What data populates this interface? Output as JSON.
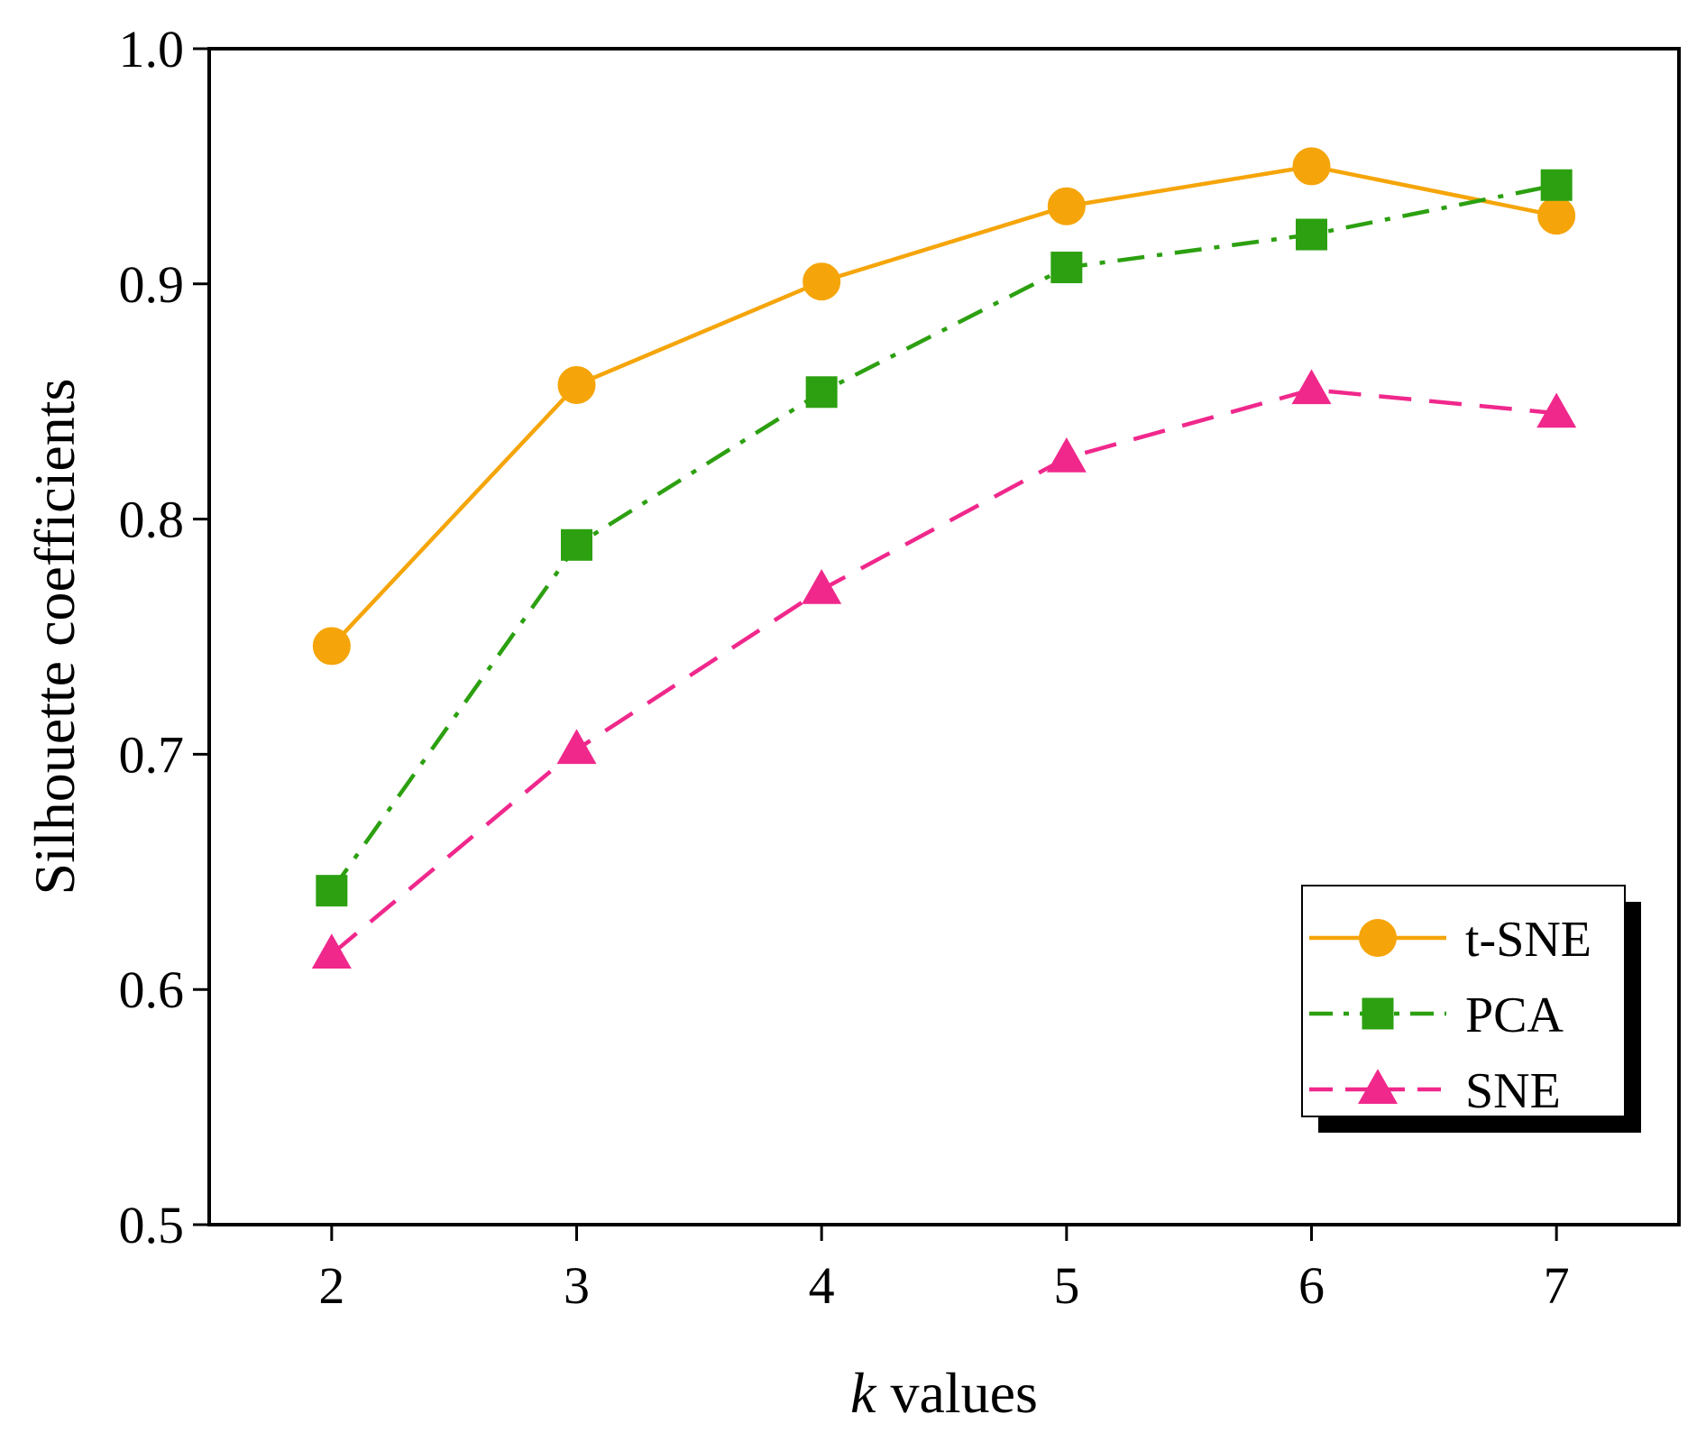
{
  "chart_data": {
    "type": "line",
    "title": "",
    "xlabel_italic": "k",
    "xlabel_rest": " values",
    "ylabel": "Silhouette coefficients",
    "x": [
      2,
      3,
      4,
      5,
      6,
      7
    ],
    "x_tick_labels": [
      "2",
      "3",
      "4",
      "5",
      "6",
      "7"
    ],
    "xlim": [
      1.5,
      7.5
    ],
    "ylim": [
      0.5,
      1.0
    ],
    "y_ticks": [
      0.5,
      0.6,
      0.7,
      0.8,
      0.9,
      1.0
    ],
    "y_tick_labels": [
      "0.5",
      "0.6",
      "0.7",
      "0.8",
      "0.9",
      "1.0"
    ],
    "grid": false,
    "legend_position": "bottom-right",
    "series": [
      {
        "name": "t-SNE",
        "color": "#f5a50a",
        "marker": "circle",
        "line_style": "solid",
        "values": [
          0.746,
          0.857,
          0.901,
          0.933,
          0.95,
          0.929
        ]
      },
      {
        "name": "PCA",
        "color": "#2ca010",
        "marker": "square",
        "line_style": "dash-dot",
        "values": [
          0.642,
          0.789,
          0.854,
          0.907,
          0.921,
          0.942
        ]
      },
      {
        "name": "SNE",
        "color": "#f0288c",
        "marker": "triangle",
        "line_style": "dashed",
        "values": [
          0.615,
          0.702,
          0.77,
          0.826,
          0.855,
          0.845
        ]
      }
    ]
  }
}
